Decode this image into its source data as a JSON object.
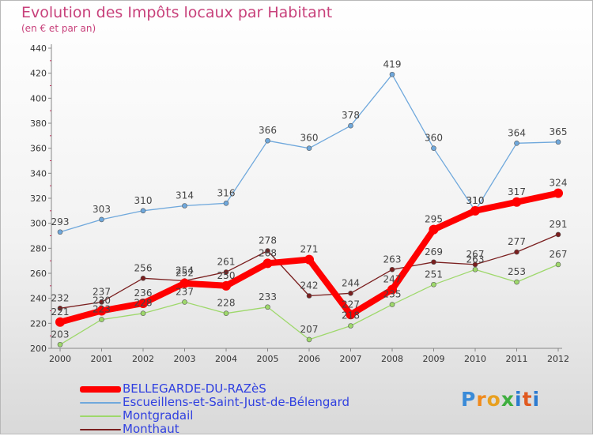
{
  "title": "Evolution des Impôts locaux par Habitant",
  "subtitle": "(en € et par an)",
  "logo": {
    "letters": [
      "P",
      "r",
      "o",
      "x",
      "i",
      "t",
      "i"
    ]
  },
  "chart_data": {
    "type": "line",
    "x": [
      "2000",
      "2001",
      "2002",
      "2003",
      "2004",
      "2005",
      "2006",
      "2007",
      "2008",
      "2009",
      "2010",
      "2011",
      "2012"
    ],
    "yticks": [
      "200",
      "220",
      "240",
      "260",
      "280",
      "300",
      "320",
      "340",
      "360",
      "380",
      "400",
      "420",
      "440"
    ],
    "ylim": [
      200,
      440
    ],
    "grid": false,
    "legend_position": "bottom-left",
    "series": [
      {
        "name": "BELLEGARDE-DU-RAZèS",
        "color": "#ff0000",
        "emphasis": true,
        "values": [
          221,
          230,
          236,
          252,
          250,
          268,
          271,
          227,
          247,
          295,
          310,
          317,
          324
        ],
        "labels": [
          "221",
          "230",
          "236",
          "252",
          "250",
          "268",
          "271",
          "227",
          "247",
          "295",
          "310",
          "317",
          "324"
        ]
      },
      {
        "name": "Escueillens-et-Saint-Just-de-Bélengard",
        "color": "#6fa8dc",
        "emphasis": false,
        "values": [
          293,
          303,
          310,
          314,
          316,
          366,
          360,
          378,
          419,
          360,
          310,
          364,
          365
        ],
        "labels": [
          "293",
          "303",
          "310",
          "314",
          "316",
          "366",
          "360",
          "378",
          "419",
          "360",
          "310",
          "364",
          "365"
        ]
      },
      {
        "name": "Montgradail",
        "color": "#9ed86b",
        "emphasis": false,
        "values": [
          203,
          223,
          228,
          237,
          228,
          233,
          207,
          218,
          235,
          251,
          263,
          253,
          267
        ],
        "labels": [
          "203",
          "223",
          "228",
          "237",
          "228",
          "233",
          "207",
          "218",
          "235",
          "251",
          "263",
          "253",
          "267"
        ]
      },
      {
        "name": "Monthaut",
        "color": "#7a1f1f",
        "emphasis": false,
        "values": [
          232,
          237,
          256,
          254,
          261,
          278,
          242,
          244,
          263,
          269,
          267,
          277,
          291
        ],
        "labels": [
          "232",
          "237",
          "256",
          "254",
          "261",
          "278",
          "242",
          "244",
          "263",
          "269",
          "267",
          "277",
          "291"
        ]
      }
    ]
  }
}
